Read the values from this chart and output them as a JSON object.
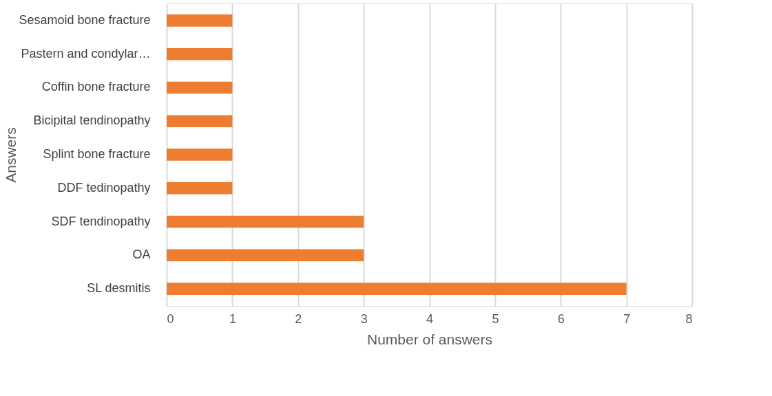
{
  "chart_data": {
    "type": "bar",
    "orientation": "horizontal",
    "categories": [
      "Sesamoid bone fracture",
      "Pastern and condylar…",
      "Coffin bone fracture",
      "Bicipital tendinopathy",
      "Splint bone fracture",
      "DDF tedinopathy",
      "SDF tendinopathy",
      "OA",
      "SL desmitis"
    ],
    "values": [
      1,
      1,
      1,
      1,
      1,
      1,
      3,
      3,
      7
    ],
    "color": "#ed7d31",
    "xlim": [
      0,
      8
    ],
    "xticks": [
      0,
      1,
      2,
      3,
      4,
      5,
      6,
      7,
      8
    ],
    "xlabel": "Number of answers",
    "ylabel": "Answers",
    "grid": "x"
  }
}
